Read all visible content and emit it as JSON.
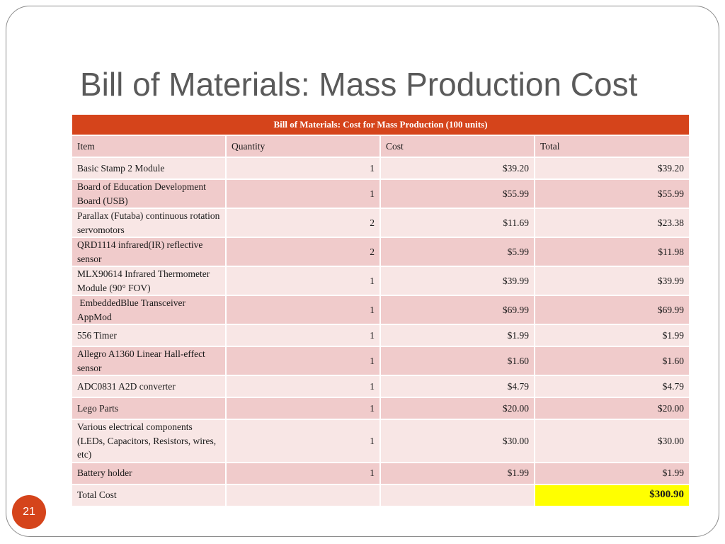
{
  "slide": {
    "title": "Bill of Materials: Mass Production Cost",
    "page_number": "21"
  },
  "table": {
    "caption": "Bill of Materials: Cost for Mass Production (100 units)",
    "headers": [
      "Item",
      "Quantity",
      "Cost",
      "Total"
    ],
    "rows": [
      {
        "item": "Basic Stamp 2 Module",
        "quantity": "1",
        "cost": "$39.20",
        "total": "$39.20"
      },
      {
        "item": "Board of Education Development Board (USB)",
        "quantity": "1",
        "cost": "$55.99",
        "total": "$55.99"
      },
      {
        "item": "Parallax (Futaba) continuous rotation servomotors",
        "quantity": "2",
        "cost": "$11.69",
        "total": "$23.38"
      },
      {
        "item": "QRD1114 infrared(IR) reflective sensor",
        "quantity": "2",
        "cost": "$5.99",
        "total": "$11.98"
      },
      {
        "item": "MLX90614 Infrared Thermometer Module (90° FOV)",
        "quantity": "1",
        "cost": "$39.99",
        "total": "$39.99"
      },
      {
        "item": " EmbeddedBlue Transceiver AppMod",
        "quantity": "1",
        "cost": "$69.99",
        "total": "$69.99"
      },
      {
        "item": "556 Timer",
        "quantity": "1",
        "cost": "$1.99",
        "total": "$1.99"
      },
      {
        "item": "Allegro A1360 Linear Hall-effect sensor",
        "quantity": "1",
        "cost": "$1.60",
        "total": "$1.60"
      },
      {
        "item": "ADC0831 A2D converter",
        "quantity": "1",
        "cost": "$4.79",
        "total": "$4.79"
      },
      {
        "item": "Lego Parts",
        "quantity": "1",
        "cost": "$20.00",
        "total": "$20.00"
      },
      {
        "item": "Various electrical components (LEDs, Capacitors, Resistors, wires, etc)",
        "quantity": "1",
        "cost": "$30.00",
        "total": "$30.00"
      },
      {
        "item": "Battery holder",
        "quantity": "1",
        "cost": "$1.99",
        "total": "$1.99"
      }
    ],
    "total_label": "Total Cost",
    "total_value": "$300.90"
  },
  "colors": {
    "accent": "#d5441b",
    "row_dark": "#f0cbcb",
    "row_light": "#f8e6e5",
    "highlight": "#ffff00",
    "title_text": "#5a5a5a"
  }
}
